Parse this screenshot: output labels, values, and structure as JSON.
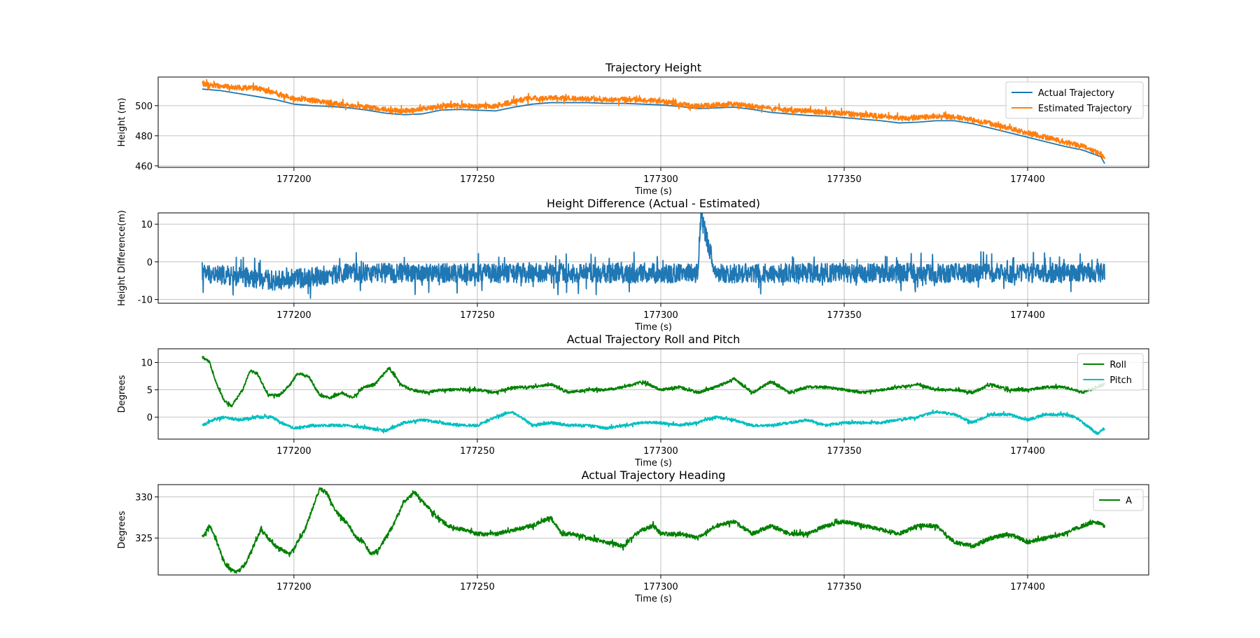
{
  "chart_data": [
    {
      "type": "line",
      "title": "Trajectory Height",
      "xlabel": "Time (s)",
      "ylabel": "Height (m)",
      "xlim": [
        177163,
        177433
      ],
      "ylim": [
        459,
        519
      ],
      "xticks": [
        177200,
        177250,
        177300,
        177350,
        177400
      ],
      "yticks": [
        460,
        480,
        500
      ],
      "grid": true,
      "legend_position": "top-right",
      "series": [
        {
          "name": "Actual Trajectory",
          "color": "#1f77b4",
          "noise": 0,
          "x": [
            177175,
            177180,
            177185,
            177190,
            177195,
            177200,
            177205,
            177210,
            177215,
            177220,
            177225,
            177230,
            177235,
            177240,
            177245,
            177250,
            177255,
            177260,
            177265,
            177270,
            177275,
            177280,
            177285,
            177290,
            177295,
            177300,
            177305,
            177310,
            177315,
            177320,
            177325,
            177330,
            177335,
            177340,
            177345,
            177350,
            177355,
            177360,
            177365,
            177370,
            177375,
            177380,
            177385,
            177390,
            177395,
            177400,
            177405,
            177410,
            177415,
            177420,
            177421
          ],
          "y": [
            511,
            510,
            508,
            506,
            504,
            501,
            500,
            499.5,
            498.5,
            497,
            495,
            494,
            494.5,
            497,
            497.5,
            497,
            496.5,
            499,
            501,
            502,
            502,
            502,
            501.5,
            501.5,
            501,
            500.5,
            499.5,
            498,
            498.5,
            499,
            497.5,
            495.5,
            494.5,
            493.5,
            493,
            492,
            491,
            490,
            488.5,
            489,
            490,
            490,
            488,
            485,
            482,
            479,
            476,
            473,
            470.5,
            466,
            461.5
          ]
        },
        {
          "name": "Estimated Trajectory",
          "color": "#ff7f0e",
          "noise": 1.7,
          "x": [
            177175,
            177180,
            177185,
            177190,
            177195,
            177200,
            177205,
            177210,
            177215,
            177220,
            177225,
            177230,
            177235,
            177240,
            177245,
            177250,
            177255,
            177260,
            177265,
            177270,
            177275,
            177280,
            177285,
            177290,
            177295,
            177300,
            177305,
            177310,
            177315,
            177320,
            177325,
            177330,
            177335,
            177340,
            177345,
            177350,
            177355,
            177360,
            177365,
            177370,
            177375,
            177380,
            177385,
            177390,
            177395,
            177400,
            177405,
            177410,
            177415,
            177420,
            177421
          ],
          "y": [
            514.5,
            513,
            512,
            511.5,
            508,
            505,
            503.5,
            502,
            500,
            499,
            497.5,
            496.5,
            497.5,
            499.5,
            500,
            499.5,
            499.5,
            503,
            505,
            505,
            505,
            504.5,
            504,
            504,
            503.5,
            503,
            501,
            499.5,
            500.5,
            501,
            499.5,
            498,
            497,
            496.5,
            495.5,
            495,
            494,
            493,
            491.5,
            492,
            493,
            492.5,
            490.5,
            488,
            485,
            482,
            479,
            476,
            473,
            468,
            464
          ]
        }
      ]
    },
    {
      "type": "line",
      "title": "Height Difference (Actual - Estimated)",
      "xlabel": "Time (s)",
      "ylabel": "Height Difference(m)",
      "xlim": [
        177163,
        177433
      ],
      "ylim": [
        -11,
        13
      ],
      "xticks": [
        177200,
        177250,
        177300,
        177350,
        177400
      ],
      "yticks": [
        -10,
        0,
        10
      ],
      "grid": true,
      "series": [
        {
          "name": "Height Difference",
          "color": "#1f77b4",
          "noise": 2.6,
          "x": [
            177175,
            177185,
            177195,
            177205,
            177215,
            177225,
            177235,
            177245,
            177255,
            177265,
            177275,
            177285,
            177295,
            177305,
            177310,
            177311,
            177315,
            177325,
            177335,
            177345,
            177355,
            177365,
            177375,
            177385,
            177395,
            177405,
            177415,
            177421
          ],
          "y": [
            -3,
            -4,
            -5,
            -4,
            -3,
            -3,
            -3,
            -3,
            -3,
            -3,
            -3,
            -3,
            -3,
            -3,
            -3,
            12,
            -3,
            -3,
            -3,
            -3,
            -3,
            -3,
            -3,
            -3,
            -3,
            -3,
            -3,
            -3
          ]
        }
      ]
    },
    {
      "type": "line",
      "title": "Actual Trajectory Roll and Pitch",
      "xlabel": "Time (s)",
      "ylabel": "Degrees",
      "xlim": [
        177163,
        177433
      ],
      "ylim": [
        -4,
        12.5
      ],
      "xticks": [
        177200,
        177250,
        177300,
        177350,
        177400
      ],
      "yticks": [
        0,
        5,
        10
      ],
      "grid": true,
      "legend_position": "top-right",
      "series": [
        {
          "name": "Roll",
          "color": "#008000",
          "noise": 0.25,
          "x": [
            177175,
            177177,
            177179,
            177181,
            177183,
            177186,
            177188,
            177190,
            177193,
            177196,
            177199,
            177201,
            177204,
            177207,
            177210,
            177213,
            177216,
            177219,
            177222,
            177226,
            177229,
            177232,
            177236,
            177240,
            177245,
            177250,
            177255,
            177260,
            177265,
            177270,
            177275,
            177280,
            177285,
            177290,
            177295,
            177300,
            177305,
            177310,
            177315,
            177320,
            177325,
            177330,
            177335,
            177340,
            177345,
            177350,
            177355,
            177360,
            177365,
            177370,
            177375,
            177380,
            177385,
            177390,
            177395,
            177400,
            177405,
            177410,
            177415,
            177421
          ],
          "y": [
            11,
            10,
            6,
            3,
            2,
            5,
            8.5,
            8,
            4,
            4,
            6,
            8,
            7.5,
            4,
            3.5,
            4.5,
            3.5,
            5.5,
            6,
            9,
            6,
            5,
            4.5,
            5,
            5,
            5,
            4.5,
            5.5,
            5.5,
            6,
            4.5,
            5,
            5,
            5.5,
            6.5,
            5,
            5.5,
            4.5,
            5.5,
            7,
            4.5,
            6.5,
            4.5,
            5.5,
            5.5,
            5,
            4.5,
            5,
            5.5,
            6,
            5,
            5,
            4.5,
            6,
            5,
            5,
            5.5,
            5.5,
            4.5,
            6
          ]
        },
        {
          "name": "Pitch",
          "color": "#00bfbf",
          "noise": 0.25,
          "x": [
            177175,
            177178,
            177181,
            177185,
            177190,
            177194,
            177198,
            177200,
            177205,
            177210,
            177215,
            177220,
            177225,
            177230,
            177235,
            177240,
            177245,
            177250,
            177255,
            177259,
            177262,
            177265,
            177270,
            177275,
            177280,
            177285,
            177290,
            177295,
            177300,
            177305,
            177310,
            177315,
            177320,
            177325,
            177330,
            177335,
            177340,
            177345,
            177350,
            177355,
            177360,
            177365,
            177370,
            177375,
            177380,
            177385,
            177390,
            177395,
            177400,
            177405,
            177410,
            177413,
            177416,
            177419,
            177421
          ],
          "y": [
            -1.5,
            -0.5,
            0,
            -0.5,
            0,
            0,
            -1.5,
            -2,
            -1.5,
            -1.5,
            -1.5,
            -2,
            -2.5,
            -1,
            -0.5,
            -1,
            -1.5,
            -1.5,
            0,
            1,
            0,
            -1.5,
            -1,
            -1.5,
            -1.5,
            -2,
            -1.5,
            -1,
            -1,
            -1.5,
            -1,
            0,
            -0.5,
            -1.5,
            -1.5,
            -1,
            -0.5,
            -1.5,
            -1,
            -1,
            -1,
            -0.5,
            0,
            1,
            0.5,
            -1,
            0.5,
            0.5,
            -0.5,
            0.5,
            0.5,
            0,
            -1.5,
            -3,
            -2
          ]
        }
      ]
    },
    {
      "type": "line",
      "title": "Actual Trajectory Heading",
      "xlabel": "Time (s)",
      "ylabel": "Degrees",
      "xlim": [
        177163,
        177433
      ],
      "ylim": [
        320.5,
        331.5
      ],
      "xticks": [
        177200,
        177250,
        177300,
        177350,
        177400
      ],
      "yticks": [
        325,
        330
      ],
      "grid": true,
      "legend_position": "top-right",
      "series": [
        {
          "name": "A",
          "color": "#008000",
          "noise": 0.25,
          "x": [
            177175,
            177177,
            177179,
            177181,
            177183,
            177185,
            177187,
            177189,
            177191,
            177193,
            177195,
            177197,
            177199,
            177201,
            177203,
            177205,
            177207,
            177209,
            177211,
            177213,
            177215,
            177217,
            177219,
            177221,
            177223,
            177225,
            177227,
            177230,
            177233,
            177236,
            177239,
            177242,
            177246,
            177250,
            177255,
            177260,
            177265,
            177270,
            177273,
            177276,
            177280,
            177285,
            177290,
            177292,
            177295,
            177298,
            177300,
            177305,
            177310,
            177315,
            177320,
            177325,
            177330,
            177335,
            177340,
            177345,
            177350,
            177355,
            177360,
            177365,
            177370,
            177375,
            177380,
            177385,
            177390,
            177395,
            177400,
            177405,
            177410,
            177415,
            177418,
            177421
          ],
          "y": [
            325,
            326.5,
            324.5,
            322,
            321,
            321,
            322,
            324,
            326,
            325,
            324,
            323.5,
            323,
            324.5,
            326,
            328.5,
            331,
            330.5,
            328.5,
            327.5,
            326.5,
            325,
            324.5,
            323,
            323.5,
            325,
            326.5,
            329.5,
            330.5,
            329,
            327.5,
            326.5,
            326,
            325.5,
            325.5,
            326,
            326.5,
            327.5,
            325.5,
            325.5,
            325,
            324.5,
            324,
            325,
            326,
            326.5,
            325.5,
            325.5,
            325,
            326.5,
            327,
            325.5,
            326.5,
            325.5,
            325.5,
            326.5,
            327,
            326.5,
            326,
            325.5,
            326.5,
            326.5,
            324.5,
            324,
            325,
            325.5,
            324.5,
            325,
            325.5,
            326.5,
            327,
            326.5
          ]
        }
      ]
    }
  ]
}
